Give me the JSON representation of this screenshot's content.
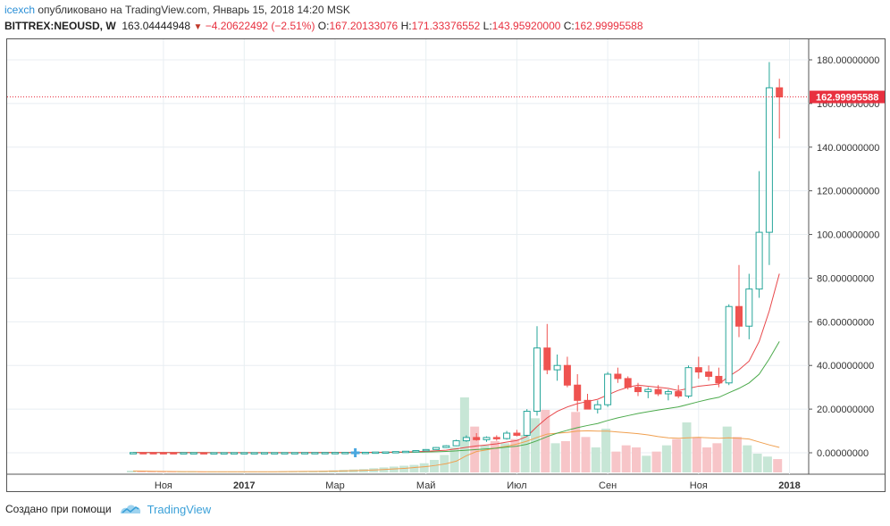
{
  "header": {
    "author": "icexch",
    "published_text": "опубликовано на TradingView.com, Январь 15, 2018 14:20 MSK",
    "symbol": "BITTREX:NEOUSD, W",
    "last": "163.04444948",
    "change": "−4.20622492 (−2.51%)",
    "o_label": "O:",
    "o": "167.20133076",
    "h_label": "H:",
    "h": "171.33376552",
    "l_label": "L:",
    "l": "143.95920000",
    "c_label": "C:",
    "c": "162.99995588"
  },
  "footer": {
    "created_with": "Создано при помощи",
    "brand": "TradingView"
  },
  "colors": {
    "up": "#26a69a",
    "up_fill": "#ffffff",
    "down": "#ef5350",
    "up_volume": "#c7e6d6",
    "down_volume": "#f7c5c8",
    "ma_fast": "#e8474a",
    "ma_slow": "#4caa4c",
    "ma_volume": "#f0a050",
    "price_line": "#e8303f",
    "grid": "#e8eef2"
  },
  "chart_data": {
    "type": "candlestick",
    "symbol": "BITTREX:NEOUSD",
    "interval": "W",
    "ylim": [
      -10,
      190
    ],
    "y_ticks": [
      0,
      20,
      40,
      60,
      80,
      100,
      120,
      140,
      160,
      180
    ],
    "y_tick_labels": [
      "0.00000000",
      "20.00000000",
      "40.00000000",
      "60.00000000",
      "80.00000000",
      "100.00000000",
      "120.00000000",
      "140.00000000",
      "160.00000000",
      "180.00000000"
    ],
    "x_labels": [
      {
        "label": "Ноя",
        "index": 3
      },
      {
        "label": "2017",
        "index": 11
      },
      {
        "label": "Мар",
        "index": 20
      },
      {
        "label": "Май",
        "index": 29
      },
      {
        "label": "Июл",
        "index": 38
      },
      {
        "label": "Сен",
        "index": 47
      },
      {
        "label": "Ноя",
        "index": 56
      },
      {
        "label": "2018",
        "index": 65
      }
    ],
    "last_price": 162.99995588,
    "last_price_label": "162.99995588",
    "candles": [
      [
        0.1,
        0.12,
        0.08,
        0.1
      ],
      [
        0.1,
        0.11,
        0.07,
        0.09
      ],
      [
        0.09,
        0.1,
        0.07,
        0.08
      ],
      [
        0.08,
        0.09,
        0.06,
        0.07
      ],
      [
        0.07,
        0.08,
        0.05,
        0.06
      ],
      [
        0.06,
        0.07,
        0.05,
        0.06
      ],
      [
        0.06,
        0.07,
        0.05,
        0.06
      ],
      [
        0.06,
        0.07,
        0.05,
        0.05
      ],
      [
        0.05,
        0.06,
        0.04,
        0.05
      ],
      [
        0.05,
        0.06,
        0.04,
        0.05
      ],
      [
        0.05,
        0.07,
        0.04,
        0.06
      ],
      [
        0.06,
        0.07,
        0.05,
        0.06
      ],
      [
        0.06,
        0.07,
        0.05,
        0.06
      ],
      [
        0.06,
        0.08,
        0.05,
        0.07
      ],
      [
        0.07,
        0.08,
        0.06,
        0.07
      ],
      [
        0.07,
        0.09,
        0.06,
        0.08
      ],
      [
        0.08,
        0.09,
        0.07,
        0.08
      ],
      [
        0.08,
        0.1,
        0.07,
        0.09
      ],
      [
        0.09,
        0.11,
        0.08,
        0.1
      ],
      [
        0.1,
        0.12,
        0.09,
        0.11
      ],
      [
        0.11,
        0.14,
        0.1,
        0.12
      ],
      [
        0.12,
        0.16,
        0.11,
        0.15
      ],
      [
        0.15,
        0.2,
        0.14,
        0.18
      ],
      [
        0.18,
        0.25,
        0.17,
        0.22
      ],
      [
        0.22,
        0.4,
        0.2,
        0.35
      ],
      [
        0.35,
        0.45,
        0.3,
        0.4
      ],
      [
        0.4,
        0.6,
        0.35,
        0.55
      ],
      [
        0.55,
        0.8,
        0.5,
        0.7
      ],
      [
        0.7,
        1.2,
        0.6,
        1.0
      ],
      [
        1.0,
        1.6,
        0.9,
        1.5
      ],
      [
        1.5,
        2.6,
        1.4,
        2.4
      ],
      [
        2.4,
        3.5,
        2.2,
        3.2
      ],
      [
        3.2,
        6.0,
        3.0,
        5.5
      ],
      [
        5.5,
        8.0,
        5.0,
        7.0
      ],
      [
        7.0,
        9.0,
        5.5,
        6.0
      ],
      [
        6.0,
        7.5,
        5.0,
        7.0
      ],
      [
        7.0,
        8.0,
        5.5,
        6.5
      ],
      [
        6.5,
        10.0,
        6.0,
        9.0
      ],
      [
        9.0,
        10.5,
        7.5,
        8.0
      ],
      [
        8.0,
        20.0,
        7.5,
        19.0
      ],
      [
        19.0,
        58.0,
        17.0,
        48.0
      ],
      [
        48.0,
        59.0,
        36.0,
        38.0
      ],
      [
        38.0,
        45.0,
        33.0,
        40.0
      ],
      [
        40.0,
        44.0,
        30.0,
        31.0
      ],
      [
        31.0,
        36.0,
        19.0,
        24.0
      ],
      [
        24.0,
        27.0,
        20.0,
        20.0
      ],
      [
        20.0,
        24.0,
        18.0,
        22.0
      ],
      [
        22.0,
        37.0,
        21.0,
        36.0
      ],
      [
        36.0,
        39.0,
        32.0,
        34.0
      ],
      [
        34.0,
        35.0,
        29.0,
        30.0
      ],
      [
        30.0,
        32.0,
        26.0,
        28.0
      ],
      [
        28.0,
        30.0,
        25.0,
        29.0
      ],
      [
        29.0,
        31.0,
        26.0,
        27.0
      ],
      [
        27.0,
        29.0,
        24.0,
        28.0
      ],
      [
        28.0,
        31.0,
        25.0,
        26.0
      ],
      [
        26.0,
        40.0,
        25.0,
        39.0
      ],
      [
        39.0,
        44.0,
        34.0,
        37.0
      ],
      [
        37.0,
        40.0,
        33.0,
        35.0
      ],
      [
        35.0,
        39.0,
        30.0,
        32.0
      ],
      [
        32.0,
        68.0,
        31.0,
        67.0
      ],
      [
        67.0,
        86.0,
        53.0,
        58.0
      ],
      [
        58.0,
        82.0,
        52.0,
        75.0
      ],
      [
        75.0,
        129.0,
        71.0,
        101.0
      ],
      [
        101.0,
        179.0,
        86.0,
        167.2
      ],
      [
        167.20133076,
        171.33376552,
        143.9592,
        162.99995588
      ]
    ],
    "volume": [
      0.4,
      0.3,
      0.25,
      0.2,
      0.15,
      0.15,
      0.15,
      0.15,
      0.12,
      0.12,
      0.15,
      0.15,
      0.15,
      0.2,
      0.2,
      0.25,
      0.3,
      0.3,
      0.35,
      0.4,
      0.5,
      0.6,
      0.7,
      0.8,
      1.0,
      1.2,
      1.4,
      1.6,
      1.8,
      2.2,
      3.0,
      4.2,
      6.0,
      18.0,
      11.0,
      6.5,
      7.5,
      7.0,
      8.0,
      9.0,
      13.0,
      15.0,
      7.0,
      7.5,
      14.5,
      8.5,
      6.0,
      10.5,
      5.0,
      6.5,
      6.0,
      4.0,
      5.0,
      6.5,
      8.0,
      12.0,
      8.5,
      6.0,
      7.0,
      11.0,
      8.5,
      6.5,
      4.5,
      3.8,
      3.2
    ],
    "volume_scale_max": 30,
    "volume_ma": [
      0.35,
      0.32,
      0.28,
      0.25,
      0.22,
      0.2,
      0.18,
      0.17,
      0.16,
      0.15,
      0.15,
      0.15,
      0.15,
      0.16,
      0.17,
      0.19,
      0.21,
      0.23,
      0.25,
      0.28,
      0.32,
      0.37,
      0.43,
      0.5,
      0.6,
      0.72,
      0.86,
      1.0,
      1.2,
      1.4,
      1.7,
      2.1,
      2.7,
      4.0,
      5.0,
      5.4,
      5.9,
      6.3,
      6.8,
      7.5,
      8.4,
      9.2,
      9.4,
      9.6,
      9.9,
      10.0,
      9.9,
      9.9,
      9.7,
      9.5,
      9.3,
      9.0,
      8.6,
      8.3,
      8.2,
      8.3,
      8.4,
      8.3,
      8.2,
      8.3,
      8.2,
      8.0,
      7.3,
      6.6,
      6.0
    ],
    "ma_fast": [
      0.1,
      0.1,
      0.09,
      0.09,
      0.08,
      0.08,
      0.07,
      0.07,
      0.06,
      0.06,
      0.06,
      0.06,
      0.06,
      0.06,
      0.06,
      0.07,
      0.07,
      0.08,
      0.08,
      0.09,
      0.1,
      0.11,
      0.13,
      0.15,
      0.19,
      0.24,
      0.3,
      0.38,
      0.5,
      0.66,
      0.9,
      1.2,
      1.8,
      2.5,
      3.1,
      3.6,
      4.1,
      4.9,
      5.6,
      7.5,
      12.0,
      16.0,
      19.0,
      21.0,
      22.5,
      23.5,
      24.5,
      26.5,
      28.5,
      30.0,
      31.0,
      30.5,
      30.0,
      29.5,
      28.5,
      29.5,
      30.5,
      31.0,
      31.5,
      35.0,
      38.0,
      42.0,
      51.0,
      65.0,
      82.0
    ],
    "ma_slow": [
      0.1,
      0.1,
      0.1,
      0.09,
      0.09,
      0.08,
      0.08,
      0.08,
      0.07,
      0.07,
      0.07,
      0.07,
      0.07,
      0.06,
      0.06,
      0.06,
      0.07,
      0.07,
      0.07,
      0.08,
      0.08,
      0.09,
      0.1,
      0.11,
      0.13,
      0.15,
      0.18,
      0.22,
      0.28,
      0.36,
      0.47,
      0.62,
      0.85,
      1.2,
      1.5,
      1.8,
      2.1,
      2.6,
      3.0,
      3.9,
      5.5,
      7.4,
      9.0,
      10.3,
      11.5,
      12.5,
      13.4,
      14.8,
      16.0,
      17.0,
      18.0,
      18.8,
      19.6,
      20.3,
      21.0,
      22.2,
      23.4,
      24.5,
      25.4,
      27.5,
      29.5,
      32.0,
      36.0,
      43.0,
      51.0
    ]
  }
}
